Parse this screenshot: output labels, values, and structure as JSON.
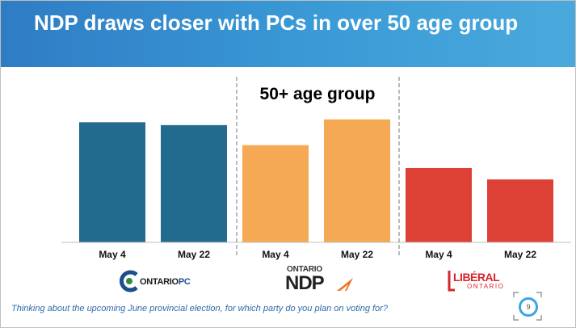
{
  "header": {
    "title": "NDP draws closer with PCs in over 50 age group"
  },
  "chart_data": {
    "type": "bar",
    "title": "50+ age group",
    "categories": [
      "May 4",
      "May 22",
      "May 4",
      "May 22",
      "May 4",
      "May 22"
    ],
    "groups": [
      {
        "party": "Ontario PC",
        "color": "#236b8e",
        "values": [
          42,
          41
        ]
      },
      {
        "party": "Ontario NDP",
        "color": "#f5a955",
        "values": [
          34,
          43
        ]
      },
      {
        "party": "Ontario Liberal",
        "color": "#dd4135",
        "values": [
          26,
          22
        ]
      }
    ],
    "ylim": [
      0,
      50
    ],
    "xlabel": "",
    "ylabel": "",
    "grid": false
  },
  "logos": {
    "pc": {
      "prefix": "ONTARIO",
      "suffix": "PC"
    },
    "ndp": {
      "top": "ONTARIO",
      "main": "NDP"
    },
    "liberal": {
      "main": "LIBÉRAL",
      "sub": "ONTARIO"
    }
  },
  "footer": {
    "question": "Thinking about the upcoming June provincial election, for which party do you plan on voting for?",
    "page_number": "9"
  },
  "colors": {
    "header_start": "#2f7cc4",
    "header_end": "#4aa9dc",
    "page_ring": "#38a6e0"
  }
}
